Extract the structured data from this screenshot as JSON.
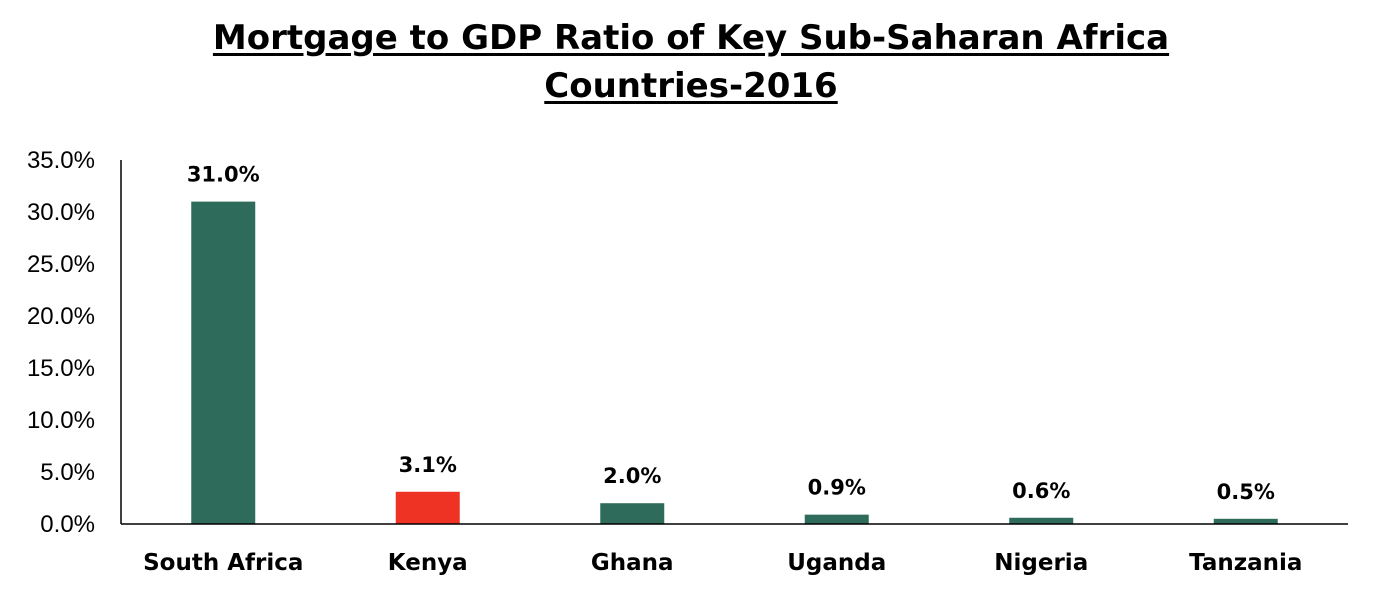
{
  "chart_data": {
    "type": "bar",
    "title_line1": "Mortgage to GDP Ratio of Key Sub-Saharan Africa",
    "title_line2": "Countries-2016",
    "categories": [
      "South Africa",
      "Kenya",
      "Ghana",
      "Uganda",
      "Nigeria",
      "Tanzania"
    ],
    "values": [
      31.0,
      3.1,
      2.0,
      0.9,
      0.6,
      0.5
    ],
    "data_labels": [
      "31.0%",
      "3.1%",
      "2.0%",
      "0.9%",
      "0.6%",
      "0.5%"
    ],
    "y_ticks": [
      "0.0%",
      "5.0%",
      "10.0%",
      "15.0%",
      "20.0%",
      "25.0%",
      "30.0%",
      "35.0%"
    ],
    "ylim": [
      0,
      35
    ],
    "grid": false,
    "legend": "none",
    "colors": {
      "default": "#2e6b5a",
      "highlight": "#ee3224",
      "highlight_category": "Kenya"
    }
  }
}
